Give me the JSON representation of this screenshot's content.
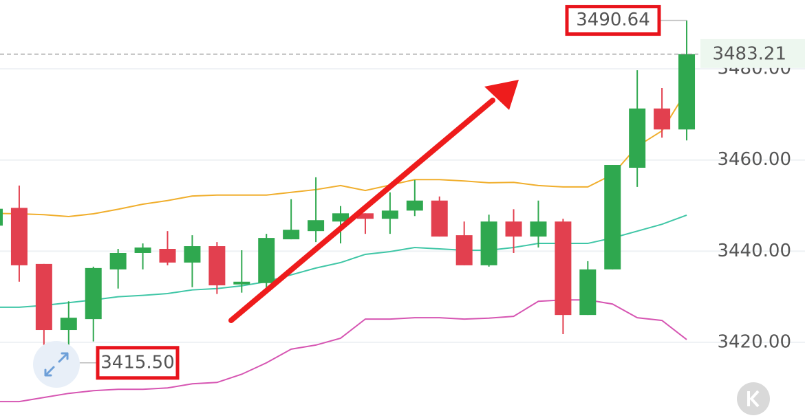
{
  "chart_data": {
    "type": "candlestick",
    "ylim": [
      3403.4,
      3495.1
    ],
    "yticks": [
      {
        "value": 3420,
        "label": "3420.00"
      },
      {
        "value": 3440,
        "label": "3440.00"
      },
      {
        "value": 3460,
        "label": "3460.00"
      },
      {
        "value": 3480,
        "label": "3480.00"
      }
    ],
    "grid": true,
    "up_color": "#2fa84f",
    "down_color": "#e2404f",
    "open": [
      3445.6,
      3449.5,
      3437.2,
      3422.7,
      3425.1,
      3436.0,
      3439.6,
      3440.5,
      3437.5,
      3441.1,
      3432.7,
      3433.0,
      3442.6,
      3444.4,
      3446.5,
      3448.3,
      3447.1,
      3448.9,
      3451.1,
      3443.5,
      3436.9,
      3446.5,
      3443.2,
      3446.5,
      3426.0,
      3436.0,
      3458.3,
      3471.3,
      3466.7
    ],
    "high": [
      3449.3,
      3454.4,
      3437.2,
      3429.0,
      3436.6,
      3440.5,
      3441.7,
      3444.4,
      3443.5,
      3442.0,
      3440.2,
      3443.8,
      3451.4,
      3456.2,
      3449.9,
      3448.3,
      3452.9,
      3455.6,
      3452.0,
      3446.5,
      3448.0,
      3449.2,
      3451.1,
      3447.1,
      3437.8,
      3458.9,
      3479.7,
      3475.8,
      3490.64
    ],
    "low": [
      3445.6,
      3433.3,
      3416.0,
      3415.5,
      3420.2,
      3431.8,
      3436.0,
      3436.9,
      3432.1,
      3430.6,
      3430.9,
      3431.8,
      3442.6,
      3442.0,
      3441.7,
      3443.8,
      3443.8,
      3447.7,
      3443.2,
      3436.9,
      3436.6,
      3439.6,
      3440.8,
      3421.8,
      3426.0,
      3436.0,
      3454.1,
      3464.9,
      3464.3
    ],
    "close": [
      3449.3,
      3436.9,
      3422.7,
      3425.4,
      3436.3,
      3439.6,
      3440.8,
      3437.5,
      3441.1,
      3432.5,
      3433.3,
      3442.9,
      3444.7,
      3446.8,
      3448.3,
      3447.1,
      3448.9,
      3451.1,
      3443.2,
      3436.9,
      3446.5,
      3443.2,
      3446.5,
      3426.0,
      3436.0,
      3458.9,
      3471.3,
      3466.7,
      3483.21
    ],
    "lines": [
      {
        "color": "#f0ae2c",
        "values": [
          3448.3,
          3448.2,
          3448.0,
          3447.6,
          3448.2,
          3449.2,
          3450.3,
          3451.1,
          3452.1,
          3452.3,
          3452.3,
          3452.3,
          3452.9,
          3453.5,
          3454.4,
          3453.3,
          3454.5,
          3455.7,
          3455.7,
          3455.4,
          3455.0,
          3455.1,
          3454.4,
          3454.1,
          3454.1,
          3456.8,
          3463.0,
          3466.4,
          3475.2
        ]
      },
      {
        "color": "#3fc6a6",
        "values": [
          3427.7,
          3427.7,
          3428.1,
          3428.7,
          3429.3,
          3430.0,
          3430.3,
          3430.7,
          3431.5,
          3431.8,
          3432.4,
          3433.3,
          3434.8,
          3436.3,
          3437.5,
          3439.3,
          3439.9,
          3440.8,
          3440.5,
          3440.2,
          3440.2,
          3440.8,
          3441.7,
          3441.7,
          3441.7,
          3442.9,
          3444.4,
          3445.9,
          3447.9
        ]
      },
      {
        "color": "#d655b2",
        "values": [
          3407.0,
          3407.0,
          3407.9,
          3408.8,
          3409.4,
          3409.7,
          3409.7,
          3410.0,
          3410.9,
          3411.2,
          3413.0,
          3415.5,
          3418.5,
          3419.4,
          3420.9,
          3425.1,
          3425.1,
          3425.4,
          3425.4,
          3425.1,
          3425.3,
          3425.7,
          3429.0,
          3429.3,
          3429.3,
          3428.4,
          3425.4,
          3424.8,
          3420.6
        ]
      }
    ],
    "max_label": {
      "value": 3490.64,
      "label": "3490.64"
    },
    "min_label": {
      "value": 3415.5,
      "label": "3415.50"
    },
    "last_price": {
      "value": 3483.21,
      "label": "3483.21"
    }
  }
}
